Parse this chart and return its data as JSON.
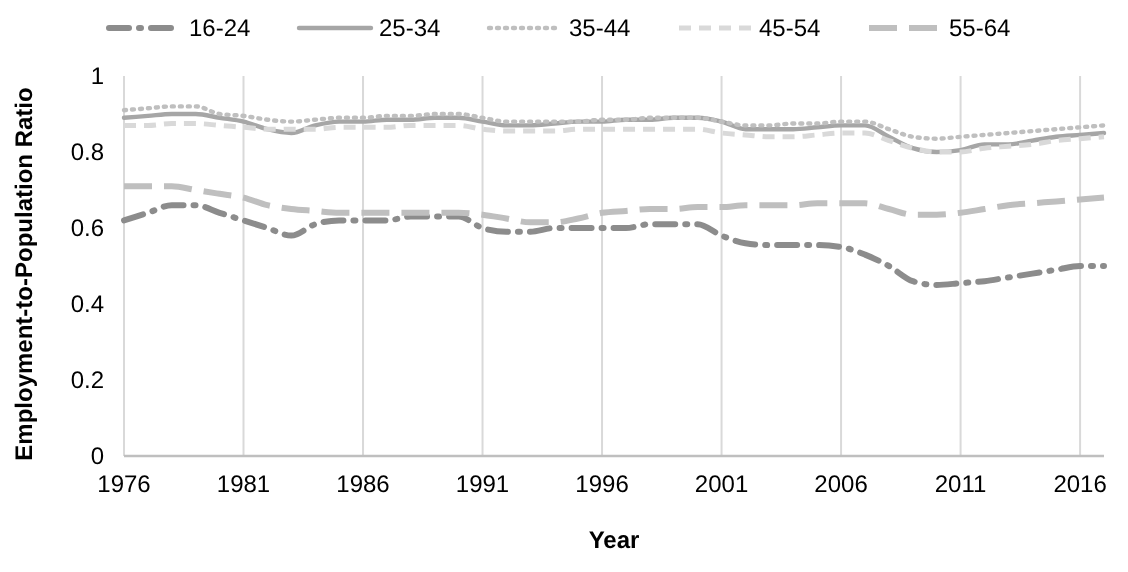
{
  "chart_data": {
    "type": "line",
    "xlabel": "Year",
    "ylabel": "Employment-to-Population Ratio",
    "x": [
      1976,
      1977,
      1978,
      1979,
      1980,
      1981,
      1982,
      1983,
      1984,
      1985,
      1986,
      1987,
      1988,
      1989,
      1990,
      1991,
      1992,
      1993,
      1994,
      1995,
      1996,
      1997,
      1998,
      1999,
      2000,
      2001,
      2002,
      2003,
      2004,
      2005,
      2006,
      2007,
      2008,
      2009,
      2010,
      2011,
      2012,
      2013,
      2014,
      2015,
      2016,
      2017
    ],
    "xlim": [
      1976,
      2017
    ],
    "xticks": [
      1976,
      1981,
      1986,
      1991,
      1996,
      2001,
      2006,
      2011,
      2016
    ],
    "ylim": [
      0,
      1
    ],
    "yticks": [
      0,
      0.2,
      0.4,
      0.6,
      0.8,
      1
    ],
    "grid": "x",
    "legend": "top",
    "series": [
      {
        "name": "16-24",
        "color": "#8c8c8c",
        "line_style": "dashdot",
        "values": [
          0.62,
          0.64,
          0.66,
          0.66,
          0.64,
          0.62,
          0.6,
          0.58,
          0.61,
          0.62,
          0.62,
          0.62,
          0.63,
          0.63,
          0.63,
          0.6,
          0.59,
          0.59,
          0.6,
          0.6,
          0.6,
          0.6,
          0.61,
          0.61,
          0.61,
          0.58,
          0.56,
          0.555,
          0.555,
          0.555,
          0.55,
          0.53,
          0.5,
          0.46,
          0.45,
          0.455,
          0.46,
          0.47,
          0.48,
          0.49,
          0.5,
          0.5
        ]
      },
      {
        "name": "25-34",
        "color": "#a6a6a6",
        "line_style": "solid",
        "values": [
          0.89,
          0.895,
          0.9,
          0.9,
          0.89,
          0.88,
          0.86,
          0.85,
          0.87,
          0.88,
          0.88,
          0.885,
          0.885,
          0.89,
          0.89,
          0.88,
          0.87,
          0.87,
          0.875,
          0.88,
          0.88,
          0.885,
          0.885,
          0.89,
          0.89,
          0.88,
          0.86,
          0.86,
          0.86,
          0.865,
          0.87,
          0.87,
          0.84,
          0.81,
          0.8,
          0.805,
          0.82,
          0.82,
          0.83,
          0.84,
          0.845,
          0.85
        ]
      },
      {
        "name": "35-44",
        "color": "#bfbfbf",
        "line_style": "dotted",
        "values": [
          0.91,
          0.915,
          0.92,
          0.92,
          0.9,
          0.895,
          0.885,
          0.88,
          0.885,
          0.89,
          0.89,
          0.895,
          0.895,
          0.9,
          0.9,
          0.89,
          0.88,
          0.88,
          0.88,
          0.88,
          0.885,
          0.885,
          0.89,
          0.89,
          0.89,
          0.88,
          0.87,
          0.87,
          0.875,
          0.875,
          0.88,
          0.88,
          0.86,
          0.84,
          0.835,
          0.84,
          0.845,
          0.85,
          0.855,
          0.86,
          0.865,
          0.87
        ]
      },
      {
        "name": "45-54",
        "color": "#d9d9d9",
        "line_style": "dashed",
        "values": [
          0.87,
          0.87,
          0.875,
          0.875,
          0.87,
          0.865,
          0.86,
          0.86,
          0.86,
          0.865,
          0.865,
          0.865,
          0.87,
          0.87,
          0.87,
          0.86,
          0.855,
          0.855,
          0.855,
          0.86,
          0.86,
          0.86,
          0.86,
          0.86,
          0.86,
          0.85,
          0.845,
          0.84,
          0.84,
          0.845,
          0.85,
          0.85,
          0.83,
          0.81,
          0.8,
          0.8,
          0.81,
          0.815,
          0.82,
          0.83,
          0.835,
          0.84
        ]
      },
      {
        "name": "55-64",
        "color": "#bfbfbf",
        "line_style": "longdash",
        "values": [
          0.71,
          0.71,
          0.71,
          0.7,
          0.69,
          0.68,
          0.66,
          0.65,
          0.645,
          0.64,
          0.64,
          0.64,
          0.64,
          0.64,
          0.64,
          0.635,
          0.625,
          0.615,
          0.615,
          0.625,
          0.64,
          0.645,
          0.65,
          0.65,
          0.655,
          0.655,
          0.66,
          0.66,
          0.66,
          0.665,
          0.665,
          0.665,
          0.65,
          0.635,
          0.635,
          0.64,
          0.65,
          0.66,
          0.665,
          0.67,
          0.675,
          0.68
        ]
      }
    ]
  }
}
